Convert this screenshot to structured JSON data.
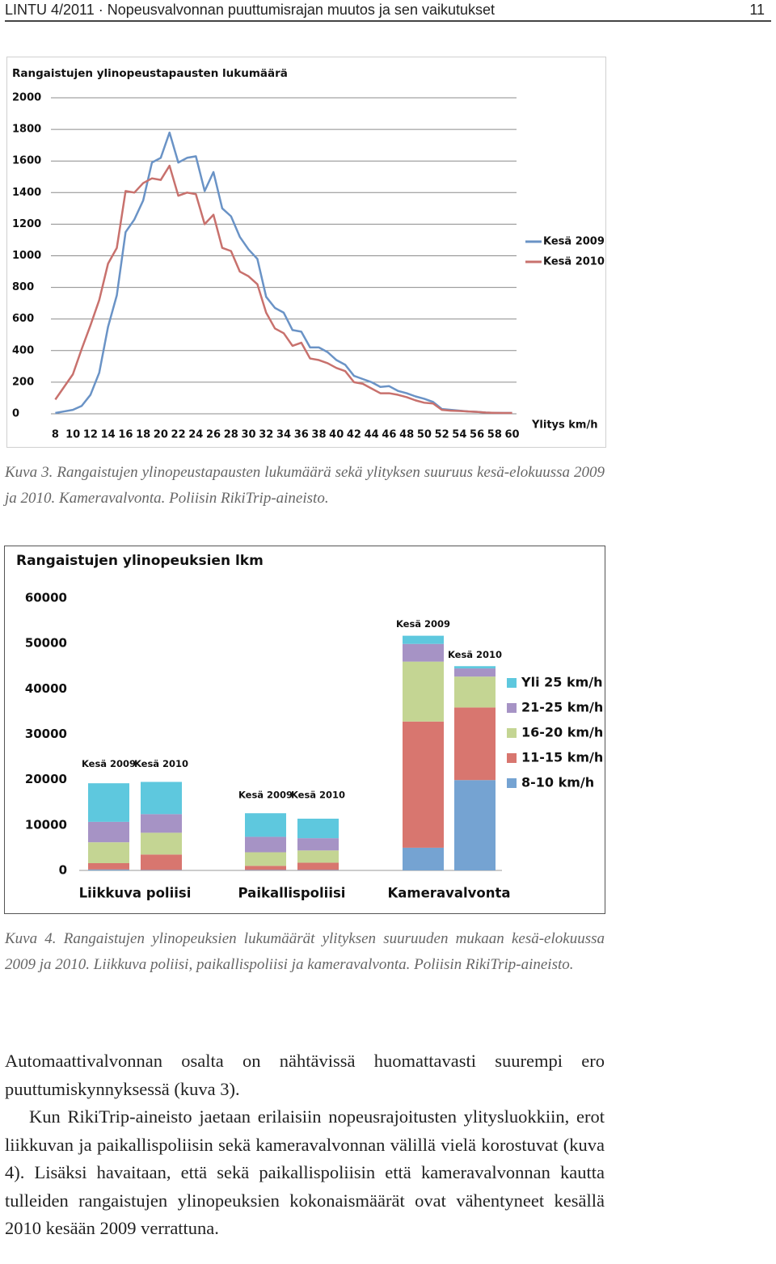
{
  "header": {
    "title": "LINTU 4/2011 · Nopeusvalvonnan puuttumisrajan muutos ja sen vaikutukset",
    "page": "11"
  },
  "chart_data": [
    {
      "type": "line",
      "title": "Rangaistujen ylinopeustapausten lukumäärä",
      "x_label": "Ylitys km/h",
      "x": [
        8,
        9,
        10,
        11,
        12,
        13,
        14,
        15,
        16,
        17,
        18,
        19,
        20,
        21,
        22,
        23,
        24,
        25,
        26,
        27,
        28,
        29,
        30,
        31,
        32,
        33,
        34,
        35,
        36,
        37,
        38,
        39,
        40,
        41,
        42,
        43,
        44,
        45,
        46,
        47,
        48,
        49,
        50,
        51,
        52,
        53,
        54,
        55,
        56,
        57,
        58,
        59,
        60
      ],
      "series": [
        {
          "name": "Kesä 2009",
          "color": "#6a93c6",
          "values": [
            5,
            15,
            25,
            50,
            120,
            260,
            550,
            750,
            1150,
            1230,
            1350,
            1590,
            1620,
            1780,
            1590,
            1620,
            1630,
            1410,
            1530,
            1300,
            1250,
            1120,
            1040,
            980,
            740,
            670,
            640,
            530,
            520,
            420,
            420,
            390,
            340,
            310,
            240,
            220,
            200,
            170,
            175,
            145,
            130,
            110,
            95,
            75,
            30,
            25,
            20,
            15,
            12,
            8,
            6,
            5,
            5
          ]
        },
        {
          "name": "Kesä 2010",
          "color": "#c8716d",
          "values": [
            90,
            170,
            250,
            410,
            560,
            720,
            950,
            1050,
            1410,
            1400,
            1460,
            1490,
            1480,
            1570,
            1380,
            1400,
            1390,
            1200,
            1260,
            1050,
            1030,
            900,
            870,
            820,
            640,
            540,
            510,
            430,
            450,
            350,
            340,
            320,
            290,
            270,
            200,
            190,
            160,
            130,
            130,
            120,
            105,
            85,
            70,
            65,
            25,
            20,
            18,
            15,
            12,
            8,
            6,
            5,
            5
          ]
        }
      ],
      "xlim": [
        7.5,
        60.5
      ],
      "xticks": [
        8,
        10,
        12,
        14,
        16,
        18,
        20,
        22,
        24,
        26,
        28,
        30,
        32,
        34,
        36,
        38,
        40,
        42,
        44,
        46,
        48,
        50,
        52,
        54,
        56,
        58,
        60
      ],
      "ylim": [
        0,
        2000
      ],
      "yticks": [
        0,
        200,
        400,
        600,
        800,
        1000,
        1200,
        1400,
        1600,
        1800,
        2000
      ],
      "grid": true,
      "legend": "right"
    },
    {
      "type": "stacked_bar",
      "title": "Rangaistujen ylinopeuksien lkm",
      "groups": [
        "Liikkuva poliisi",
        "Paikallispoliisi",
        "Kameravalvonta"
      ],
      "categories": [
        "Kesä 2009",
        "Kesä 2010",
        "Kesä 2009",
        "Kesä 2010",
        "Kesä 2009",
        "Kesä 2010"
      ],
      "series": [
        {
          "name": "8-10 km/h",
          "color": "#75a3d2",
          "values": [
            200,
            100,
            100,
            100,
            5000,
            19900
          ]
        },
        {
          "name": "11-15 km/h",
          "color": "#d8766f",
          "values": [
            1400,
            3400,
            900,
            1600,
            27800,
            16000
          ]
        },
        {
          "name": "16-20 km/h",
          "color": "#c4d593",
          "values": [
            4600,
            4800,
            3000,
            2700,
            13200,
            6800
          ]
        },
        {
          "name": "21-25 km/h",
          "color": "#a693c5",
          "values": [
            4500,
            4100,
            3400,
            2700,
            3900,
            1800
          ]
        },
        {
          "name": "Yli 25 km/h",
          "color": "#5ec8de",
          "values": [
            8500,
            7100,
            5200,
            4300,
            1800,
            500
          ]
        }
      ],
      "ylim": [
        0,
        60000
      ],
      "yticks": [
        0,
        10000,
        20000,
        30000,
        40000,
        50000,
        60000
      ],
      "grid": false,
      "legend": "right"
    }
  ],
  "captions": [
    "Kuva 3. Rangaistujen ylinopeustapausten lukumäärä sekä ylityksen suuruus kesä-elokuussa 2009 ja 2010. Kameravalvonta. Poliisin RikiTrip-aineisto.",
    "Kuva 4. Rangaistujen ylinopeuksien lukumäärät  ylityksen suuruuden mukaan kesä-elokuussa 2009 ja 2010.  Liikkuva poliisi, paikallispoliisi ja kameravalvonta. Poliisin RikiTrip-aineisto."
  ],
  "paragraphs": [
    "Automaattivalvonnan osalta on nähtävissä huomattavasti suurempi ero puuttumiskynnyksessä (kuva 3).",
    "Kun RikiTrip-aineisto jaetaan erilaisiin nopeusrajoitusten ylitysluokkiin, erot liikkuvan ja paikallispoliisin sekä kameravalvonnan välillä vielä korostuvat (kuva 4). Lisäksi havaitaan, että sekä paikallispoliisin että kameravalvonnan kautta tulleiden rangaistujen ylinopeuksien kokonaismäärät ovat vähentyneet kesällä 2010 kesään 2009 verrattuna."
  ]
}
